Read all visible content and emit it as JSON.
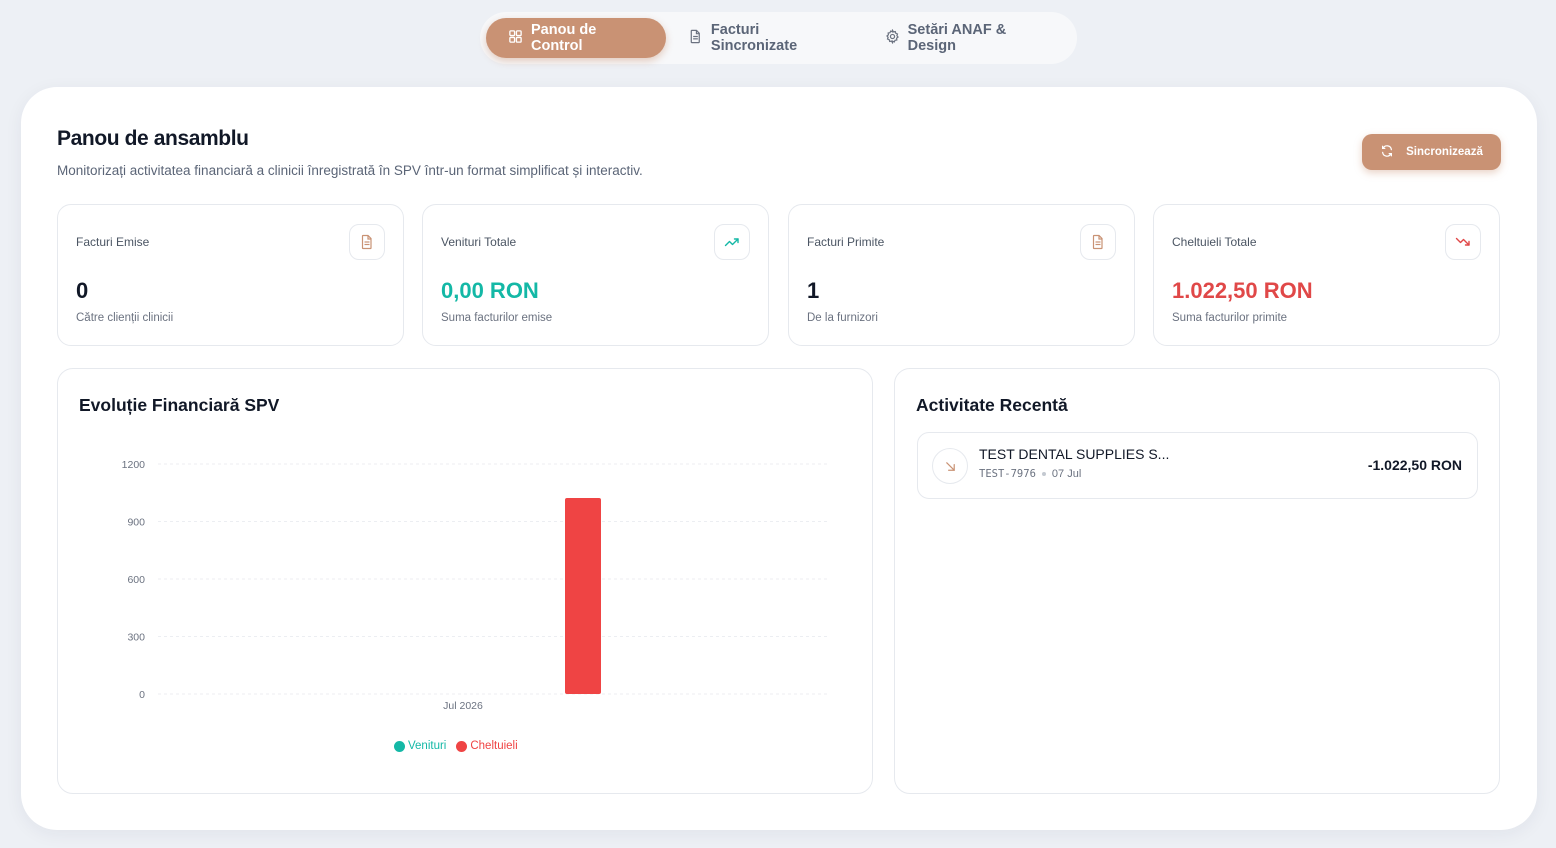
{
  "tabs": [
    {
      "label": "Panou de Control",
      "icon": "grid-icon",
      "active": true
    },
    {
      "label": "Facturi Sincronizate",
      "icon": "file-icon",
      "active": false
    },
    {
      "label": "Setări ANAF & Design",
      "icon": "gear-icon",
      "active": false
    }
  ],
  "header": {
    "title": "Panou de ansamblu",
    "subtitle": "Monitorizați activitatea financiară a clinicii înregistrată în SPV într-un format simplificat și interactiv.",
    "sync_label": "Sincronizează"
  },
  "stats": [
    {
      "label": "Facturi Emise",
      "value": "0",
      "note": "Către clienții clinicii",
      "icon": "file-icon",
      "value_color": "#111827"
    },
    {
      "label": "Venituri Totale",
      "value": "0,00 RON",
      "note": "Suma facturilor emise",
      "icon": "trending-up-icon",
      "value_color": "#14b8a6"
    },
    {
      "label": "Facturi Primite",
      "value": "1",
      "note": "De la furnizori",
      "icon": "file-icon",
      "value_color": "#111827"
    },
    {
      "label": "Cheltuieli Totale",
      "value": "1.022,50 RON",
      "note": "Suma facturilor primite",
      "icon": "trending-down-icon",
      "value_color": "#e04848"
    }
  ],
  "chart_panel": {
    "title": "Evoluție Financiară SPV"
  },
  "chart_data": {
    "type": "bar",
    "categories": [
      "Jul 2026"
    ],
    "series": [
      {
        "name": "Venituri",
        "values": [
          0
        ],
        "color": "#14b8a6"
      },
      {
        "name": "Cheltuieli",
        "values": [
          1022.5
        ],
        "color": "#ef4444"
      }
    ],
    "yticks": [
      0,
      300,
      600,
      900,
      1200
    ],
    "ylim": [
      0,
      1200
    ],
    "grid": true,
    "legend": "bottom"
  },
  "activity": {
    "title": "Activitate Recentă",
    "items": [
      {
        "name": "TEST DENTAL SUPPLIES S...",
        "code": "TEST-7976",
        "date": "07 Jul",
        "amount": "-1.022,50 RON",
        "icon": "arrow-down-right-icon"
      }
    ]
  },
  "colors": {
    "accent": "#c99274",
    "income": "#14b8a6",
    "expense": "#ef4444"
  }
}
